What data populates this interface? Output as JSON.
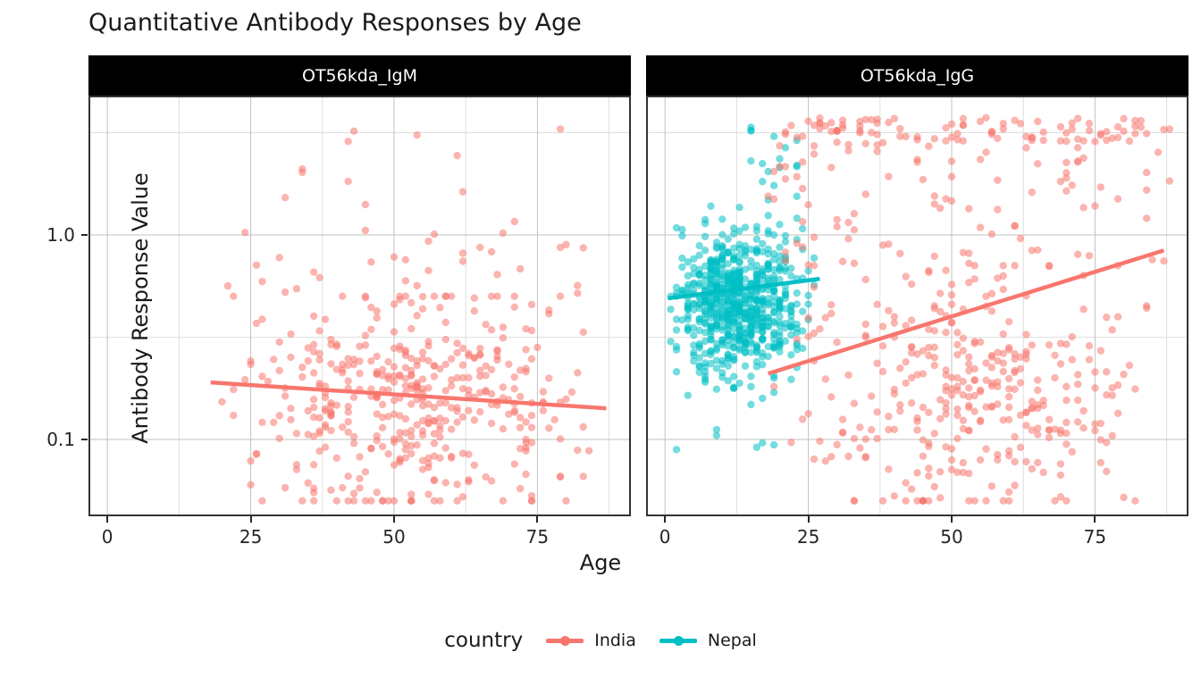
{
  "title": "Quantitative Antibody Responses by Age",
  "axes": {
    "x_label": "Age",
    "y_label": "Antibody Response Value",
    "x_tick_labels": [
      "0",
      "25",
      "50",
      "75"
    ],
    "y_tick_labels": [
      "1.0",
      "0.1"
    ]
  },
  "legend": {
    "title": "country",
    "items": [
      {
        "label": "India",
        "color": "#F8766D"
      },
      {
        "label": "Nepal",
        "color": "#00BFC4"
      }
    ]
  },
  "chart_data": {
    "type": "scatter",
    "title": "Quantitative Antibody Responses by Age",
    "xlabel": "Age",
    "ylabel": "Antibody Response Value",
    "y_scale": "log10",
    "x_domain": [
      -3.3,
      91.3
    ],
    "x_major_ticks": [
      0,
      25,
      50,
      75
    ],
    "x_minor_ticks": [
      12.5,
      37.5,
      62.5,
      87.5
    ],
    "y_domain": [
      0.042,
      4.8
    ],
    "y_major_ticks": [
      1.0,
      0.1
    ],
    "y_minor_ticks": [
      3.162,
      0.316
    ],
    "grid": true,
    "legend_position": "bottom",
    "point_style": {
      "radius": 4.2,
      "opacity": 0.55
    },
    "trend_line_width": 4.5,
    "seed": 42,
    "facets": [
      {
        "label": "OT56kda_IgM",
        "series": [
          {
            "name": "India",
            "color": "#F8766D",
            "trend": [
              [
                18,
                0.19
              ],
              [
                87,
                0.142
              ]
            ],
            "cloud": {
              "n": 420,
              "age_min": 18,
              "age_max": 88,
              "age_dist": "triangular",
              "log_center": -0.82,
              "log_sd": 0.27,
              "log_clamp": [
                -1.3,
                -0.3
              ],
              "extras": [
                {
                  "n": 30,
                  "age": [
                    20,
                    86
                  ],
                  "log": [
                    -0.3,
                    0.05
                  ]
                },
                {
                  "n": 12,
                  "age": [
                    24,
                    85
                  ],
                  "log": [
                    0.02,
                    0.54
                  ]
                }
              ]
            }
          }
        ]
      },
      {
        "label": "OT56kda_IgG",
        "series": [
          {
            "name": "Nepal",
            "color": "#00BFC4",
            "trend": [
              [
                0.5,
                0.49
              ],
              [
                27,
                0.61
              ]
            ],
            "cloud": {
              "n": 680,
              "age_min": 0,
              "age_max": 26,
              "age_dist": "triangular",
              "log_center": -0.33,
              "log_sd": 0.17,
              "log_clamp": [
                -0.95,
                0.18
              ],
              "extras": [
                {
                  "n": 16,
                  "age": [
                    14,
                    24
                  ],
                  "log": [
                    0.18,
                    0.56
                  ]
                },
                {
                  "n": 10,
                  "age": [
                    1,
                    20
                  ],
                  "log": [
                    -1.05,
                    -0.75
                  ]
                }
              ]
            }
          },
          {
            "name": "India",
            "color": "#F8766D",
            "trend": [
              [
                18,
                0.21
              ],
              [
                87,
                0.84
              ]
            ],
            "cloud": {
              "n": 340,
              "age_min": 18,
              "age_max": 88,
              "age_dist": "triangular",
              "log_center": -0.8,
              "log_sd": 0.3,
              "log_clamp": [
                -1.3,
                -0.15
              ],
              "extras": [
                {
                  "n": 70,
                  "age": [
                    18,
                    88
                  ],
                  "log": [
                    -0.15,
                    0.35
                  ]
                },
                {
                  "n": 25,
                  "age": [
                    20,
                    88
                  ],
                  "log": [
                    0.35,
                    0.46
                  ]
                },
                {
                  "n": 95,
                  "age": [
                    20,
                    88
                  ],
                  "log": [
                    0.455,
                    0.578
                  ]
                }
              ]
            }
          }
        ]
      }
    ]
  },
  "style": {
    "strip_bg": "#000000",
    "strip_text": "#ffffff",
    "panel_border": "#333333",
    "grid_major": "#c2c2c2",
    "grid_minor": "#dedede",
    "tick_color": "#262626"
  }
}
